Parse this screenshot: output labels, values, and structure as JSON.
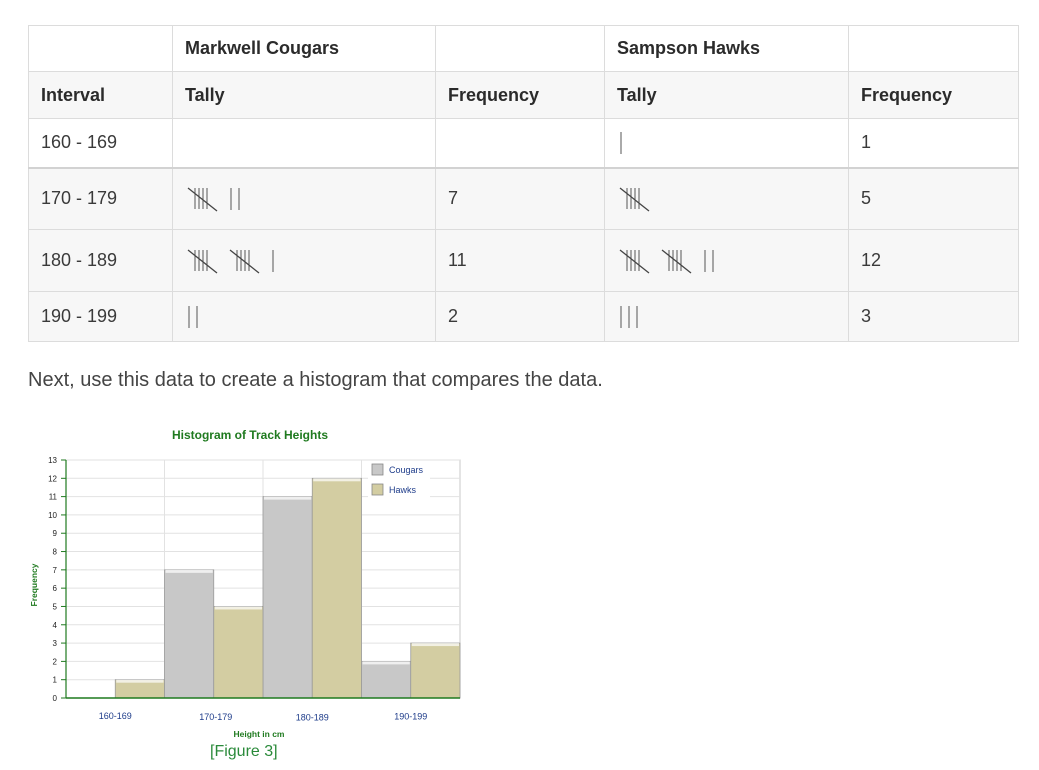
{
  "table": {
    "group_headers": [
      "",
      "Markwell Cougars",
      "",
      "Sampson Hawks",
      ""
    ],
    "col_headers": [
      "Interval",
      "Tally",
      "Frequency",
      "Tally",
      "Frequency"
    ],
    "rows": [
      {
        "interval": "160 - 169",
        "cougars_tally": 0,
        "cougars_freq": "",
        "hawks_tally": 1,
        "hawks_freq": "1"
      },
      {
        "interval": "170 - 179",
        "cougars_tally": 7,
        "cougars_freq": "7",
        "hawks_tally": 5,
        "hawks_freq": "5"
      },
      {
        "interval": "180 - 189",
        "cougars_tally": 11,
        "cougars_freq": "11",
        "hawks_tally": 12,
        "hawks_freq": "12"
      },
      {
        "interval": "190 - 199",
        "cougars_tally": 2,
        "cougars_freq": "2",
        "hawks_tally": 3,
        "hawks_freq": "3"
      }
    ]
  },
  "paragraph": "Next, use this data to create a histogram that compares the data.",
  "caption": "[Figure 3]",
  "chart_data": {
    "type": "bar",
    "title": "Histogram of Track Heights",
    "xlabel": "Height in cm",
    "ylabel": "Frequency",
    "categories": [
      "160-169",
      "170-179",
      "180-189",
      "190-199"
    ],
    "series": [
      {
        "name": "Cougars",
        "values": [
          0,
          7,
          11,
          2
        ],
        "color": "#c8c8c8"
      },
      {
        "name": "Hawks",
        "values": [
          1,
          5,
          12,
          3
        ],
        "color": "#d3cda2"
      }
    ],
    "ylim": [
      0,
      13
    ],
    "yticks": [
      0,
      1,
      2,
      3,
      4,
      5,
      6,
      7,
      8,
      9,
      10,
      11,
      12,
      13
    ],
    "grid": true,
    "legend": "top-right",
    "accent_color": "#1f7a1f"
  }
}
